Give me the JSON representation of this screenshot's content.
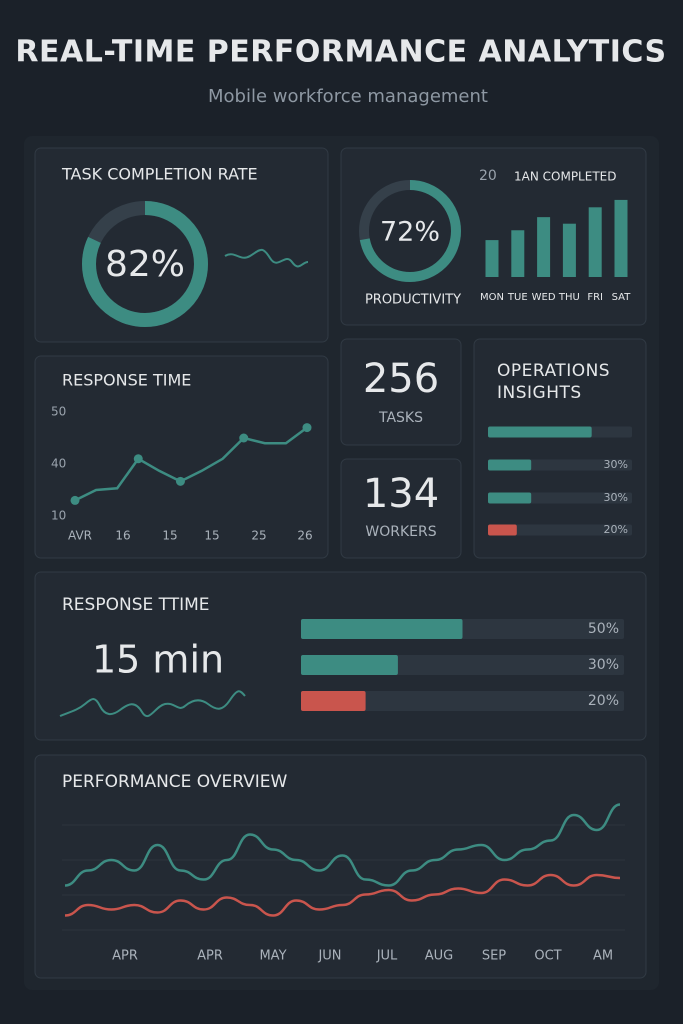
{
  "header": {
    "title": "REAL-TIME PERFORMANCE ANALYTICS",
    "subtitle": "Mobile workforce management"
  },
  "task_completion": {
    "title": "TASK COMPLETION RATE",
    "value": 82,
    "value_label": "82%",
    "color": "#3d8c82"
  },
  "productivity": {
    "value": 72,
    "value_label": "72%",
    "label": "PRODUCTIVITY",
    "color": "#3d8c82",
    "chart": {
      "type": "bar",
      "title": "1AN COMPLETED",
      "tick": 20,
      "categories": [
        "MON",
        "TUE",
        "WED",
        "THU",
        "FRI",
        "SAT"
      ],
      "values": [
        45,
        57,
        73,
        65,
        85,
        94
      ],
      "ylim": [
        0,
        100
      ],
      "color": "#3d8c82"
    }
  },
  "response_time": {
    "type": "line",
    "title": "RESPONSE TIME",
    "categories": [
      "AVR",
      "16",
      "15",
      "15",
      "25",
      "26"
    ],
    "values": [
      19,
      25,
      26,
      41,
      36,
      30,
      36,
      41,
      45,
      44,
      44,
      47
    ],
    "yticks": [
      10,
      40,
      50
    ],
    "color": "#3d8c82"
  },
  "tasks": {
    "value": 256,
    "label": "TASKS"
  },
  "workers": {
    "value": 134,
    "label": "WORKERS"
  },
  "operations": {
    "title": "OPERATIONS INSIGHTS",
    "xlim": [
      0,
      100
    ],
    "bars": [
      {
        "value": 72,
        "color": "#3d8c82"
      },
      {
        "value": 30,
        "label": "30%",
        "color": "#3d8c82"
      },
      {
        "value": 30,
        "label": "30%",
        "color": "#3d8c82"
      },
      {
        "value": 20,
        "label": "20%",
        "color": "#c9554d"
      }
    ]
  },
  "response": {
    "title": "RESPONSE TTIME",
    "value": 15,
    "value_label": "15 min",
    "xlim": [
      0,
      100
    ],
    "bars": [
      {
        "value": 50,
        "label": "50%",
        "color": "#3d8c82"
      },
      {
        "value": 30,
        "label": "30%",
        "color": "#3d8c82"
      },
      {
        "value": 20,
        "label": "20%",
        "color": "#c9554d"
      }
    ]
  },
  "overview": {
    "type": "line",
    "title": "PERFORMANCE OVERVIEW",
    "categories": [
      "APR",
      "APR",
      "MAY",
      "JUN",
      "JUL",
      "AUG",
      "SEP",
      "OCT",
      "AM"
    ],
    "ylim": [
      0,
      100
    ],
    "series": [
      {
        "color": "#3d8c82",
        "values": [
          43,
          53,
          60,
          53,
          70,
          53,
          47,
          60,
          77,
          67,
          60,
          53,
          63,
          47,
          43,
          53,
          60,
          67,
          70,
          60,
          67,
          73,
          90,
          80,
          97
        ]
      },
      {
        "color": "#c9554d",
        "values": [
          23,
          30,
          27,
          30,
          25,
          33,
          27,
          35,
          30,
          23,
          33,
          27,
          30,
          37,
          40,
          33,
          37,
          41,
          38,
          47,
          43,
          50,
          43,
          50,
          48
        ]
      }
    ]
  }
}
